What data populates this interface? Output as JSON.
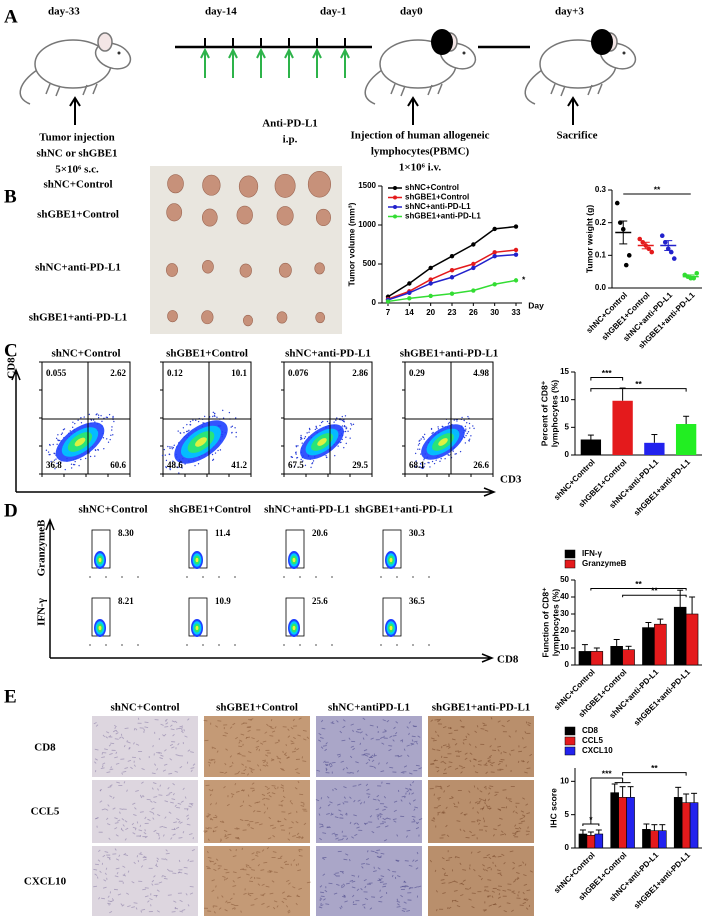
{
  "panel_labels": [
    "A",
    "B",
    "C",
    "D",
    "E"
  ],
  "panel_a": {
    "days": [
      "day-33",
      "day-14",
      "day-1",
      "day0",
      "day+3"
    ],
    "tumor_injection": [
      "Tumor injection",
      "shNC or shGBE1",
      "5×10⁶ s.c."
    ],
    "anti_pd_l1": [
      "Anti-PD-L1",
      "i.p."
    ],
    "pbmc_injection": [
      "Injection of human allogeneic",
      "lymphocytes(PBMC)",
      "1×10⁶ i.v."
    ],
    "sacrifice": "Sacrifice"
  },
  "panel_b": {
    "row_labels": [
      "shNC+Control",
      "shGBE1+Control",
      "shNC+anti-PD-L1",
      "shGBE1+anti-PD-L1"
    ]
  },
  "panel_c": {
    "titles": [
      "shNC+Control",
      "shGBE1+Control",
      "shNC+anti-PD-L1",
      "shGBE1+anti-PD-L1"
    ],
    "quadrants": [
      [
        "0.055",
        "2.62",
        "36.8",
        "60.6"
      ],
      [
        "0.12",
        "10.1",
        "48.6",
        "41.2"
      ],
      [
        "0.076",
        "2.86",
        "67.5",
        "29.5"
      ],
      [
        "0.29",
        "4.98",
        "68.1",
        "26.6"
      ]
    ],
    "x_label": "CD3",
    "y_label": "CD8"
  },
  "panel_d": {
    "titles": [
      "shNC+Control",
      "shGBE1+Control",
      "shNC+anti-PD-L1",
      "shGBE1+anti-PD-L1"
    ],
    "granzyme_gates": [
      "8.30",
      "11.4",
      "20.6",
      "30.3"
    ],
    "ifn_gates": [
      "8.21",
      "10.9",
      "25.6",
      "36.5"
    ],
    "y_labels": [
      "GranzymeB",
      "IFN-γ"
    ],
    "x_label": "CD8"
  },
  "panel_e": {
    "titles": [
      "shNC+Control",
      "shGBE1+Control",
      "shNC+antiPD-L1",
      "shGBE1+anti-PD-L1"
    ],
    "row_labels": [
      "CD8",
      "CCL5",
      "CXCL10"
    ]
  },
  "chart_data": [
    {
      "type": "line",
      "y_label": "Tumor volume (mm³)",
      "x_label": "Day",
      "categories": [
        "7",
        "14",
        "20",
        "23",
        "26",
        "30",
        "33"
      ],
      "ylim": [
        0,
        1500
      ],
      "yticks": [
        0,
        500,
        1000,
        1500
      ],
      "legend": "upper left",
      "annotations": [
        "*"
      ],
      "series": [
        {
          "name": "shNC+Control",
          "color": "#000000",
          "values": [
            80,
            250,
            450,
            600,
            750,
            950,
            980
          ]
        },
        {
          "name": "shGBE1+Control",
          "color": "#e41a1c",
          "values": [
            50,
            150,
            300,
            420,
            500,
            650,
            680
          ]
        },
        {
          "name": "shNC+anti-PD-L1",
          "color": "#2222cc",
          "values": [
            40,
            130,
            250,
            330,
            450,
            600,
            620
          ]
        },
        {
          "name": "shGBE1+anti-PD-L1",
          "color": "#33dd33",
          "values": [
            20,
            60,
            90,
            120,
            160,
            240,
            290
          ]
        }
      ]
    },
    {
      "type": "dot",
      "y_label": "Tumor weight (g)",
      "categories": [
        "shNC+Control",
        "shGBE1+Control",
        "shNC+anti-PD-L1",
        "shGBE1+anti-PD-L1"
      ],
      "ylim": [
        0,
        0.3
      ],
      "yticks": [
        {
          "value": 0,
          "label": "0.0"
        },
        0.1,
        0.2,
        0.3
      ],
      "annotations": [
        "**"
      ],
      "colors": [
        "#000000",
        "#e41a1c",
        "#2222cc",
        "#33dd33"
      ],
      "points": [
        [
          0.26,
          0.2,
          0.18,
          0.07,
          0.1
        ],
        [
          0.15,
          0.14,
          0.13,
          0.12,
          0.11
        ],
        [
          0.16,
          0.14,
          0.12,
          0.11,
          0.09
        ],
        [
          0.04,
          0.035,
          0.03,
          0.03,
          0.045
        ]
      ],
      "values": [
        0.17,
        0.13,
        0.13,
        0.035
      ],
      "errors": [
        0.035,
        0.01,
        0.015,
        0.005
      ]
    },
    {
      "type": "bar",
      "y_label": [
        "Percent of CD8⁺",
        "lymphocytes (%)"
      ],
      "categories": [
        "shNC+Control",
        "shGBE1+Control",
        "shNC+anti-PD-L1",
        "shGBE1+anti-PD-L1"
      ],
      "ylim": [
        0,
        15
      ],
      "yticks": [
        0,
        5,
        10,
        15
      ],
      "annotations": [
        "***",
        "**"
      ],
      "colors": [
        "#000000",
        "#e41a1c",
        "#2222ee",
        "#22ee22"
      ],
      "values": [
        2.8,
        9.8,
        2.2,
        5.6
      ],
      "errors": [
        0.8,
        2.3,
        1.5,
        1.4
      ]
    },
    {
      "type": "grouped_bar",
      "y_label": [
        "Function of CD8⁺",
        "lymphocytes (%)"
      ],
      "categories": [
        "shNC+Control",
        "shGBE1+Control",
        "shNC+anti-PD-L1",
        "shGBE1+anti-PD-L1"
      ],
      "ylim": [
        0,
        50
      ],
      "yticks": [
        0,
        10,
        20,
        30,
        40,
        50
      ],
      "annotations": [
        "**",
        "**"
      ],
      "legend": "upper left",
      "series": [
        {
          "name": "IFN-γ",
          "color": "#000000",
          "values": [
            8,
            11,
            22,
            34
          ],
          "errors": [
            4,
            4,
            3,
            10
          ]
        },
        {
          "name": "GranzymeB",
          "color": "#e41a1c",
          "values": [
            8,
            9,
            24,
            30
          ],
          "errors": [
            2,
            2,
            3,
            10
          ]
        }
      ]
    },
    {
      "type": "grouped_bar",
      "y_label": "IHC score",
      "categories": [
        "shNC+Control",
        "shGBE1+Control",
        "shNC+anti-PD-L1",
        "shGBE1+anti-PD-L1"
      ],
      "ylim": [
        0,
        12
      ],
      "yticks": [
        0,
        5,
        10
      ],
      "annotations": [
        "*",
        "***",
        "**"
      ],
      "legend": "upper left",
      "series": [
        {
          "name": "CD8",
          "color": "#000000",
          "values": [
            2.1,
            8.3,
            2.8,
            7.6
          ],
          "errors": [
            0.6,
            1.3,
            0.8,
            1.5
          ]
        },
        {
          "name": "CCL5",
          "color": "#e41a1c",
          "values": [
            1.9,
            7.6,
            2.6,
            6.8
          ],
          "errors": [
            0.5,
            1.6,
            0.9,
            1.3
          ]
        },
        {
          "name": "CXCL10",
          "color": "#2222ee",
          "values": [
            2.1,
            7.6,
            2.6,
            6.8
          ],
          "errors": [
            0.6,
            1.6,
            0.9,
            1.4
          ]
        }
      ]
    }
  ]
}
